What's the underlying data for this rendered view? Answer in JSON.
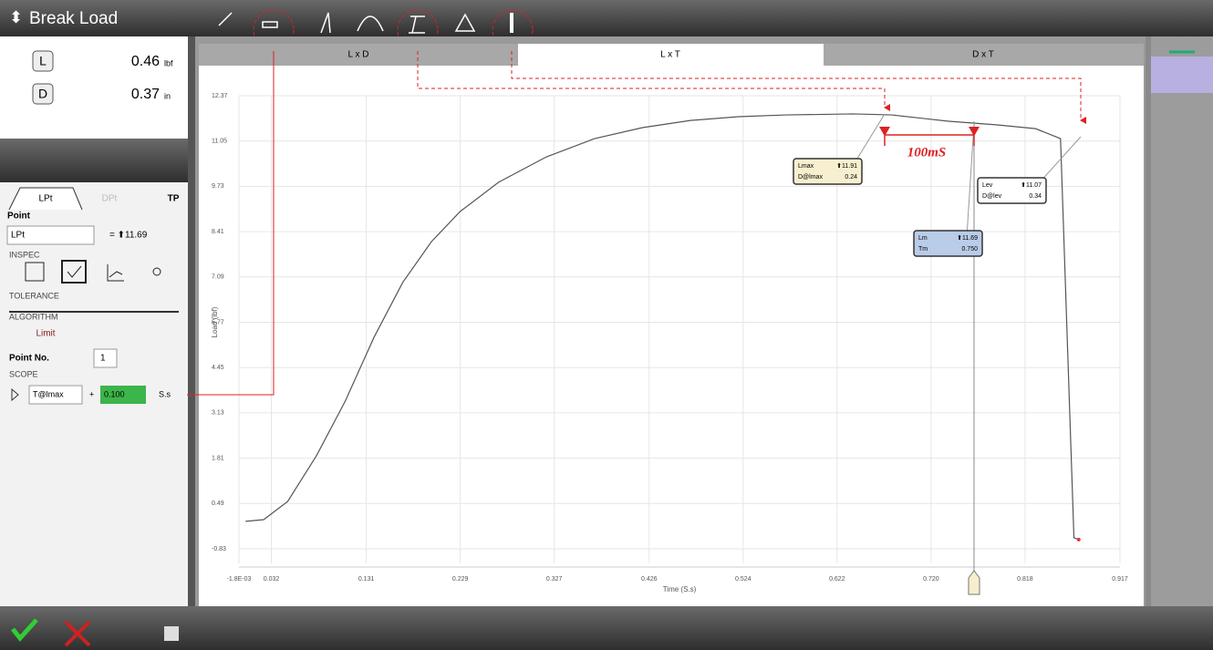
{
  "ui": {
    "title": "Break Load",
    "tabs": [
      "L x D",
      "L x T",
      "D x T"
    ],
    "readouts": [
      {
        "key": "L",
        "value": "0.46",
        "unit": "lbf"
      },
      {
        "key": "D",
        "value": "0.37",
        "unit": "in"
      }
    ],
    "panel_tabs": [
      "LPt",
      "DPt",
      "TP"
    ],
    "point_label": "Point",
    "point_name": "LPt",
    "point_value": "= ⬆11.69",
    "sections": [
      "INSPEC",
      "TOLERANCE",
      "ALGORITHM",
      "SCOPE"
    ],
    "algorithm": "Limit",
    "point_no_label": "Point No.",
    "point_no": "1",
    "scope": {
      "ref": "T@lmax",
      "op": "+",
      "value": "0.100",
      "unit": "S.s"
    },
    "callout": "100mS",
    "annotations": [
      {
        "name": "Lmax",
        "value": "⬆11.91",
        "name2": "D@lmax",
        "value2": "0.24"
      },
      {
        "name": "Lm",
        "value": "⬆11.69",
        "name2": "Tm",
        "value2": "0.750"
      },
      {
        "name": "Lev",
        "value": "⬆11.07",
        "name2": "D@lev",
        "value2": "0.34"
      }
    ]
  },
  "chart_data": {
    "type": "line",
    "x_label": "Time (S.s)",
    "y_label": "Load (lbf)",
    "xlim": [
      -0.0018,
      0.917
    ],
    "ylim": [
      -0.83,
      12.37
    ],
    "xticks": [
      {
        "value": -0.0018,
        "label": "-1.8E-03"
      },
      0.032,
      0.131,
      0.229,
      0.327,
      0.426,
      0.524,
      0.622,
      {
        "value": 0.72,
        "label": "0.720"
      },
      0.818,
      0.917
    ],
    "yticks": [
      12.37,
      11.05,
      9.73,
      8.41,
      7.09,
      5.77,
      4.45,
      3.13,
      1.81,
      0.49,
      -0.83
    ],
    "grid": true,
    "series": [
      {
        "name": "Load",
        "color": "#555555",
        "x": [
          0.005,
          0.024,
          0.049,
          0.079,
          0.109,
          0.139,
          0.169,
          0.199,
          0.229,
          0.269,
          0.319,
          0.369,
          0.419,
          0.469,
          0.519,
          0.569,
          0.639,
          0.679,
          0.737,
          0.789,
          0.829,
          0.855,
          0.869,
          0.874
        ],
        "values": [
          -0.03,
          0.02,
          0.55,
          1.88,
          3.47,
          5.33,
          6.93,
          8.12,
          9.0,
          9.85,
          10.59,
          11.12,
          11.44,
          11.65,
          11.76,
          11.81,
          11.84,
          11.81,
          11.63,
          11.52,
          11.41,
          11.12,
          -0.51,
          -0.56
        ]
      }
    ]
  }
}
